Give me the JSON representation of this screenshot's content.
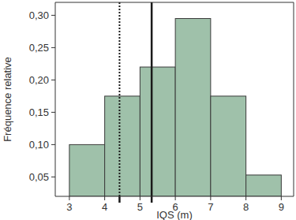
{
  "chart_data": {
    "type": "histogram",
    "x_label": "IQS (m)",
    "y_label": "Fréquence relative",
    "bins": [
      3,
      4,
      5,
      6,
      7,
      8,
      9
    ],
    "values": [
      0.1,
      0.175,
      0.22,
      0.295,
      0.175,
      0.053
    ],
    "color": "#9fc1aa",
    "xlim": [
      2.6,
      9.35
    ],
    "ylim": [
      0.02,
      0.32
    ],
    "xticks": [
      3,
      4,
      5,
      6,
      7,
      8,
      9
    ],
    "yticks": [
      {
        "value": 0.05,
        "label": "0,05"
      },
      {
        "value": 0.1,
        "label": "0,10"
      },
      {
        "value": 0.15,
        "label": "0,15"
      },
      {
        "value": 0.2,
        "label": "0,20"
      },
      {
        "value": 0.25,
        "label": "0,25"
      },
      {
        "value": 0.3,
        "label": "0,30"
      }
    ],
    "vlines": [
      {
        "x": 4.42,
        "line_style": "dotted"
      },
      {
        "x": 5.33,
        "line_style": "solid"
      }
    ],
    "grid": false
  }
}
